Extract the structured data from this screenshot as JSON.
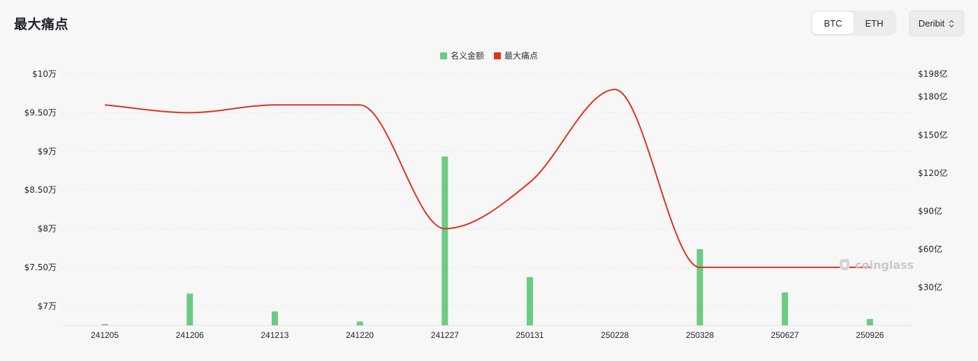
{
  "page": {
    "title": "最大痛点"
  },
  "coin_tabs": [
    {
      "label": "BTC",
      "active": true
    },
    {
      "label": "ETH",
      "active": false
    }
  ],
  "exchange_select": {
    "value": "Deribit",
    "icon": "chevron-updown-icon"
  },
  "watermark": {
    "text": "coinglass",
    "icon": "coinglass-logo-icon"
  },
  "colors": {
    "bar": "#6ccb82",
    "line": "#e2321e",
    "grid": "#e6e6e9",
    "text": "#1f2329"
  },
  "chart_data": {
    "type": "bar+line",
    "categories": [
      "241205",
      "241206",
      "241213",
      "241220",
      "241227",
      "250131",
      "250228",
      "250328",
      "250627",
      "250926"
    ],
    "series": [
      {
        "name": "名义金额",
        "type": "bar",
        "axis": "right",
        "values": [
          1,
          25,
          11,
          3,
          133,
          38,
          0,
          60,
          26,
          5
        ]
      },
      {
        "name": "最大痛点",
        "type": "line",
        "axis": "left",
        "values": [
          96000,
          95000,
          96000,
          96000,
          80000,
          86000,
          98000,
          75000,
          75000,
          75000
        ]
      }
    ],
    "left_axis": {
      "ticks": [
        70000,
        75000,
        80000,
        85000,
        90000,
        95000,
        100000
      ],
      "tick_labels": [
        "$7万",
        "$7.50万",
        "$8万",
        "$8.50万",
        "$9万",
        "$9.50万",
        "$10万"
      ],
      "range": [
        67500,
        100000
      ]
    },
    "right_axis": {
      "ticks": [
        30,
        60,
        90,
        120,
        150,
        180,
        198
      ],
      "tick_labels": [
        "$30亿",
        "$60亿",
        "$90亿",
        "$120亿",
        "$150亿",
        "$180亿",
        "$198亿"
      ],
      "range": [
        0,
        198
      ]
    },
    "legend": "top-center",
    "grid": true
  }
}
